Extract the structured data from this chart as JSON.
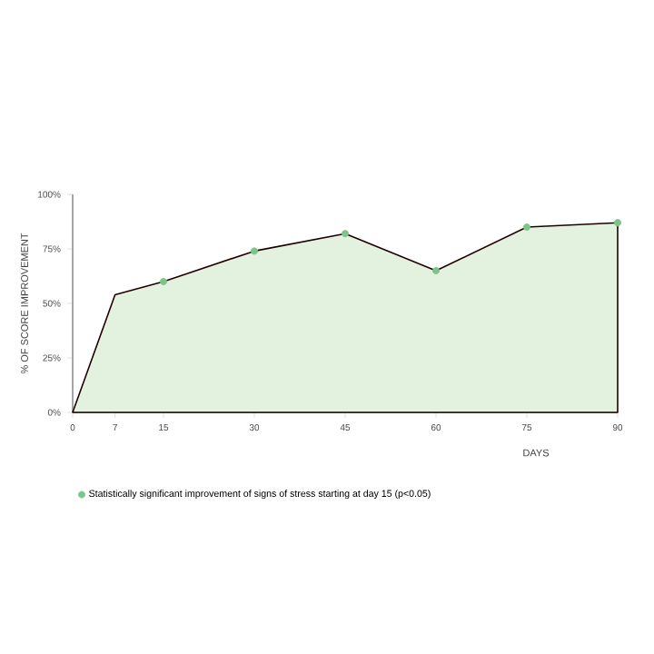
{
  "chart_data": {
    "type": "area",
    "xlabel": "DAYS",
    "ylabel": "% OF SCORE IMPROVEMENT",
    "xlim": [
      0,
      90
    ],
    "ylim": [
      0,
      100
    ],
    "xticks": [
      0,
      7,
      15,
      30,
      45,
      60,
      75,
      90
    ],
    "yticks": [
      {
        "value": 0,
        "label": "0%"
      },
      {
        "value": 25,
        "label": "25%"
      },
      {
        "value": 50,
        "label": "50%"
      },
      {
        "value": 75,
        "label": "75%"
      },
      {
        "value": 100,
        "label": "100%"
      }
    ],
    "legend": "bottom",
    "grid": false,
    "marker": "circle",
    "series": [
      {
        "color": "#e3f1df",
        "marker": "none",
        "x": [
          0,
          7,
          15,
          30,
          45,
          60,
          75,
          90
        ],
        "values": [
          0,
          54,
          60,
          74,
          82,
          65,
          85,
          87
        ]
      },
      {
        "type": "scatter",
        "name": "Statistically significant improvement of signs of stress starting at day 15 (p<0.05)",
        "color": "#7cc48a",
        "x": [
          15,
          30,
          45,
          60,
          75,
          90
        ],
        "values": [
          60,
          74,
          82,
          65,
          85,
          87
        ]
      }
    ]
  }
}
